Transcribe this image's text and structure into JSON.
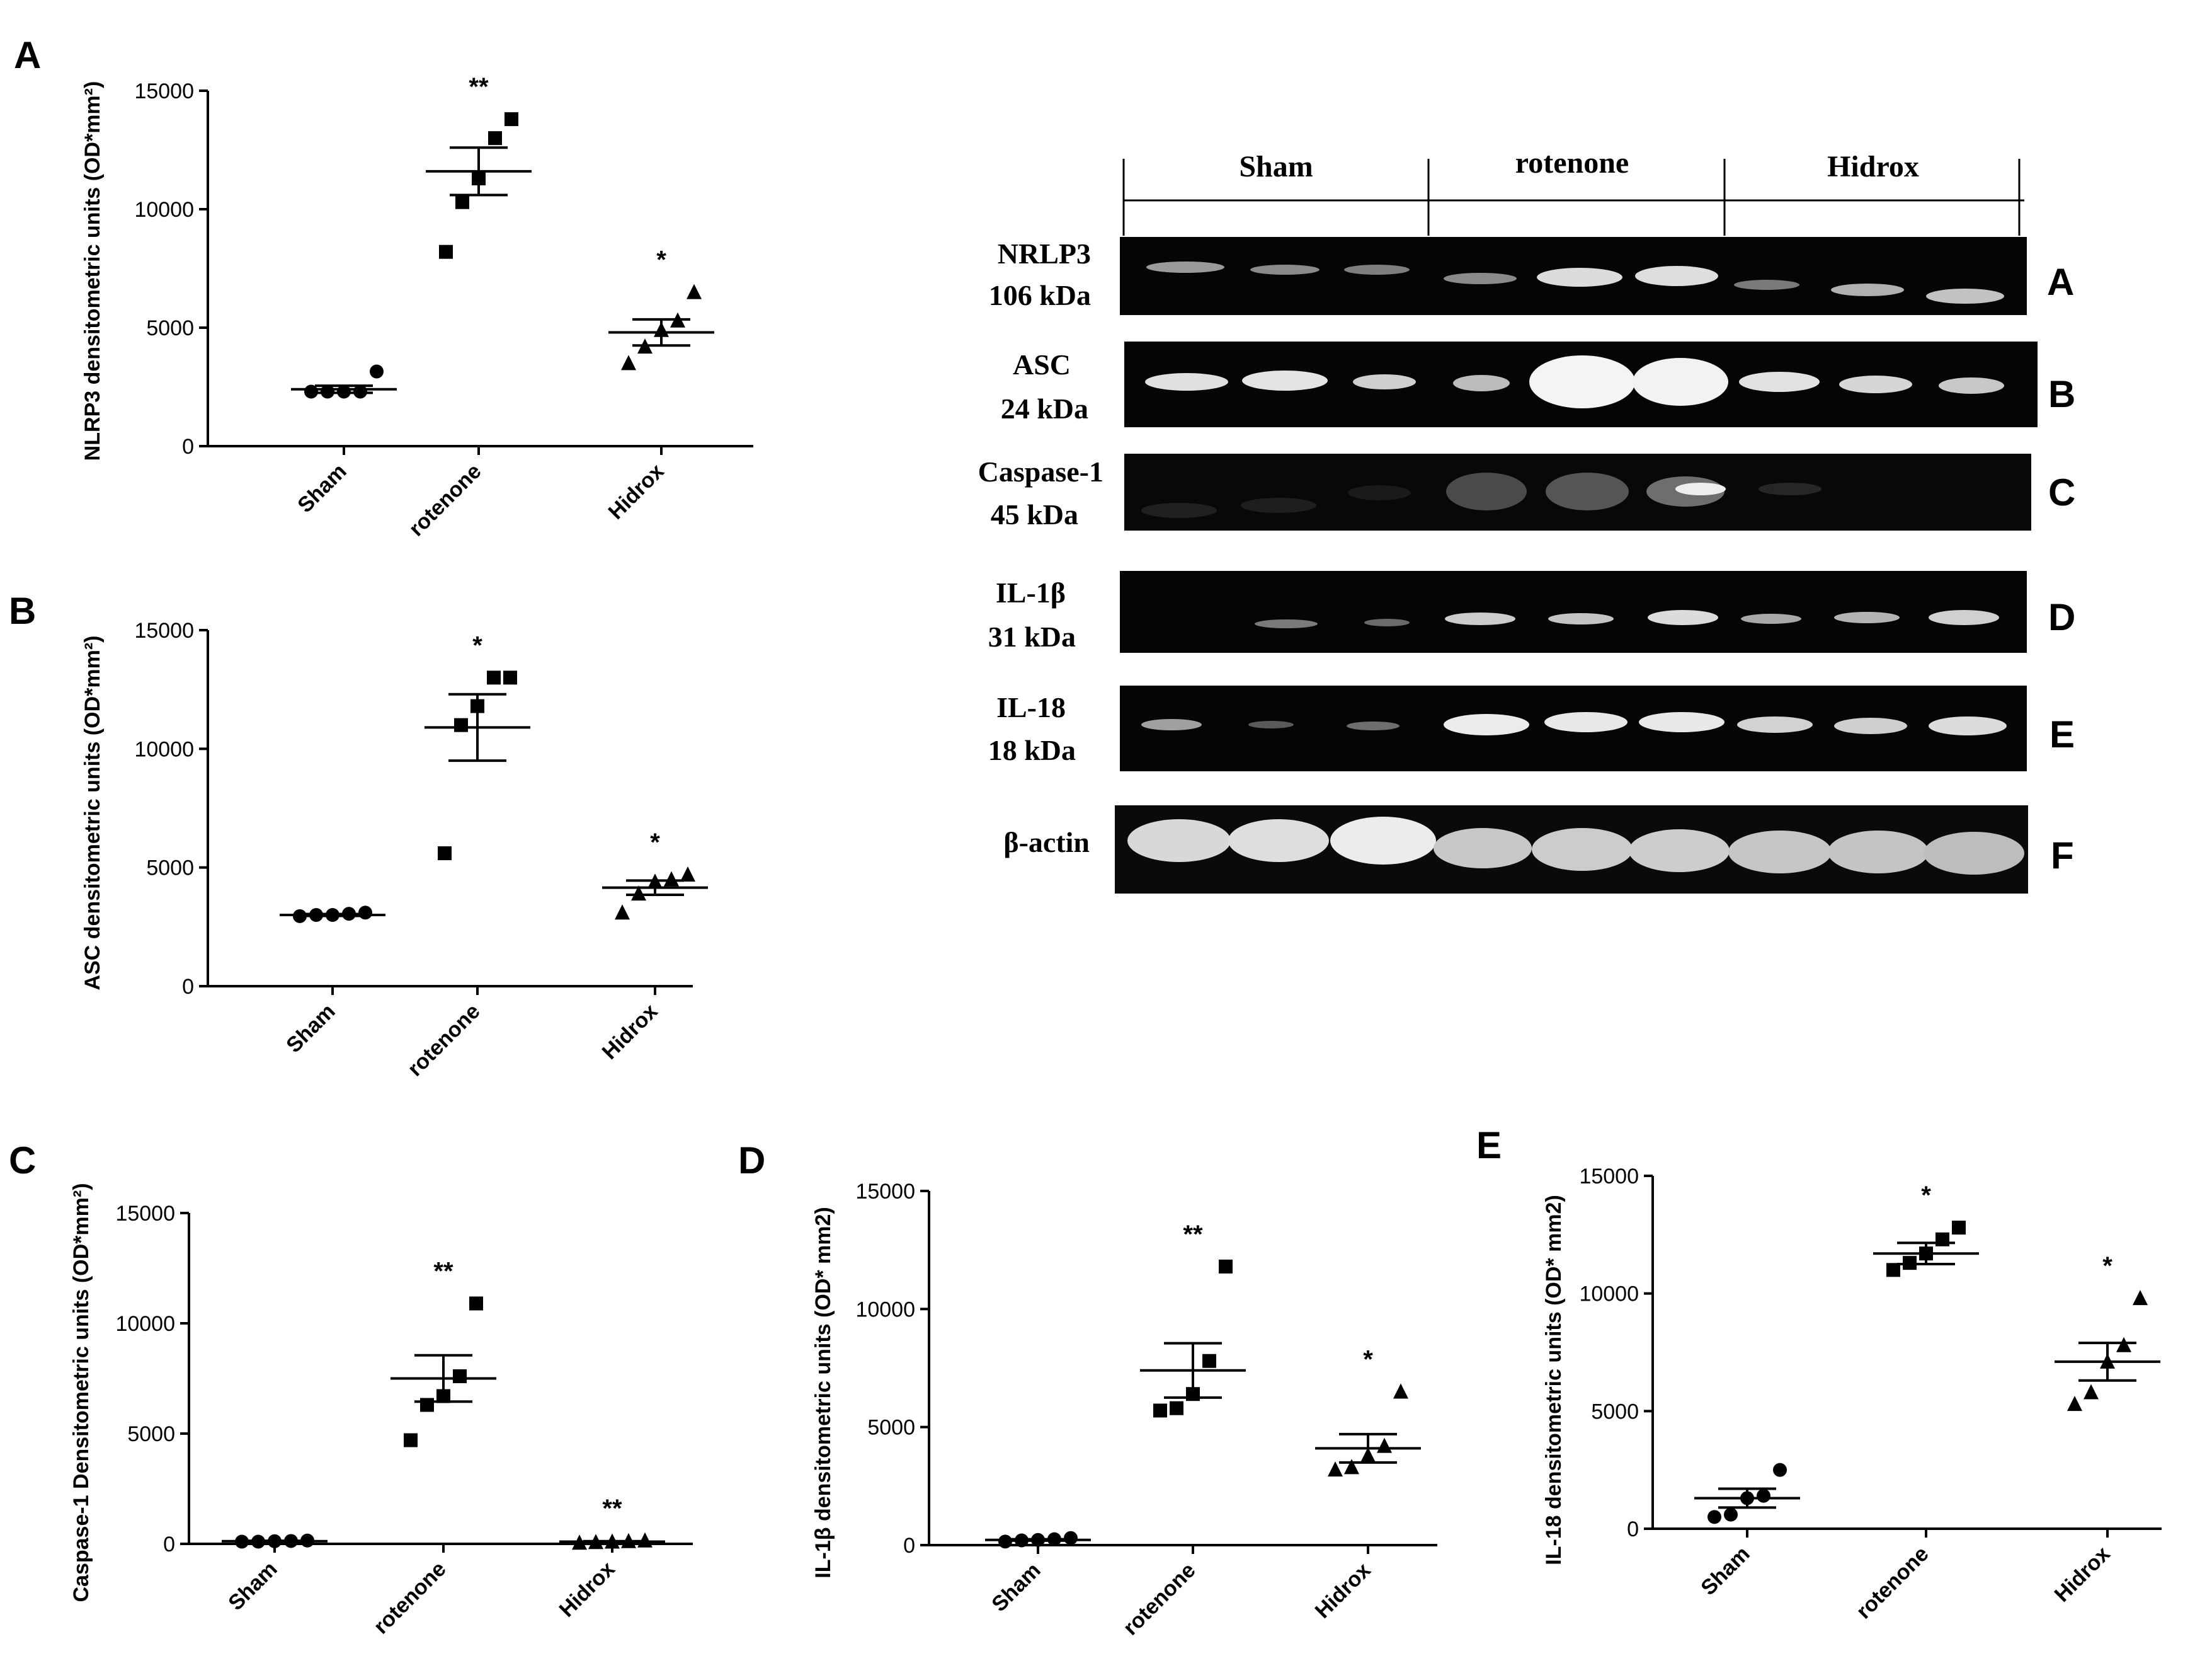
{
  "figure": {
    "charts": [
      {
        "panel": "A",
        "ylabel": "NLRP3 densitometric units (OD*mm²)"
      },
      {
        "panel": "B",
        "ylabel": "ASC densitometric units (OD*mm²)"
      },
      {
        "panel": "C",
        "ylabel": "Caspase-1 Densitometric units (OD*mm²)"
      },
      {
        "panel": "D",
        "ylabel": "IL-1β densitometric units (OD* mm2)"
      },
      {
        "panel": "E",
        "ylabel": "IL-18 densitometric units (OD* mm2)"
      }
    ],
    "blot": {
      "groups": [
        "Sham",
        "rotenone",
        "Hidrox"
      ],
      "rows": [
        {
          "label": "NRLP3",
          "size": "106 kDa",
          "panel": "A"
        },
        {
          "label": "ASC",
          "size": "24 kDa",
          "panel": "B"
        },
        {
          "label": "Caspase-1",
          "size": "45 kDa",
          "panel": "C"
        },
        {
          "label": "IL-1β",
          "size": "31 kDa",
          "panel": "D"
        },
        {
          "label": "IL-18",
          "size": "18 kDa",
          "panel": "E"
        },
        {
          "label": "β-actin",
          "size": "",
          "panel": "F"
        }
      ]
    }
  },
  "chart_data": [
    {
      "panel": "A",
      "type": "scatter",
      "title": "",
      "xlabel": "",
      "ylabel": "NLRP3 densitometric units (OD*mm²)",
      "ylim": [
        0,
        15000
      ],
      "yticks": [
        0,
        5000,
        10000,
        15000
      ],
      "categories": [
        "Sham",
        "rotenone",
        "Hidrox"
      ],
      "markers": [
        "circle",
        "square",
        "triangle"
      ],
      "points": [
        [
          2300,
          2300,
          2300,
          2300,
          3150
        ],
        [
          8200,
          10300,
          11300,
          13000,
          13800
        ],
        [
          3500,
          4200,
          4900,
          5300,
          6500
        ]
      ],
      "mean": [
        2400,
        11600,
        4800
      ],
      "sem": [
        150,
        1000,
        550
      ],
      "significance": [
        "",
        "**",
        "*"
      ]
    },
    {
      "panel": "B",
      "type": "scatter",
      "title": "",
      "xlabel": "",
      "ylabel": "ASC densitometric units (OD*mm²)",
      "ylim": [
        0,
        15000
      ],
      "yticks": [
        0,
        5000,
        10000,
        15000
      ],
      "categories": [
        "Sham",
        "rotenone",
        "Hidrox"
      ],
      "markers": [
        "circle",
        "square",
        "triangle"
      ],
      "points": [
        [
          2950,
          3000,
          3000,
          3050,
          3100
        ],
        [
          5600,
          11000,
          11800,
          13000,
          13000
        ],
        [
          3100,
          3900,
          4400,
          4500,
          4700
        ]
      ],
      "mean": [
        3000,
        10900,
        4150
      ],
      "sem": [
        40,
        1400,
        300
      ],
      "significance": [
        "",
        "*",
        "*"
      ]
    },
    {
      "panel": "C",
      "type": "scatter",
      "title": "",
      "xlabel": "",
      "ylabel": "Caspase-1 Densitometric units (OD*mm²)",
      "ylim": [
        0,
        15000
      ],
      "yticks": [
        0,
        5000,
        10000,
        15000
      ],
      "categories": [
        "Sham",
        "rotenone",
        "Hidrox"
      ],
      "markers": [
        "circle",
        "square",
        "triangle"
      ],
      "points": [
        [
          100,
          100,
          120,
          130,
          150
        ],
        [
          4700,
          6300,
          6700,
          7600,
          10900
        ],
        [
          50,
          80,
          100,
          120,
          150
        ]
      ],
      "mean": [
        120,
        7500,
        100
      ],
      "sem": [
        20,
        1050,
        20
      ],
      "significance": [
        "",
        "**",
        "**"
      ]
    },
    {
      "panel": "D",
      "type": "scatter",
      "title": "",
      "xlabel": "",
      "ylabel": "IL-1β densitometric units (OD* mm2)",
      "ylim": [
        0,
        15000
      ],
      "yticks": [
        0,
        5000,
        10000,
        15000
      ],
      "categories": [
        "Sham",
        "rotenone",
        "Hidrox"
      ],
      "markers": [
        "circle",
        "square",
        "triangle"
      ],
      "points": [
        [
          150,
          200,
          220,
          250,
          300
        ],
        [
          5700,
          5800,
          6400,
          7800,
          11800
        ],
        [
          3200,
          3300,
          3800,
          4200,
          6500
        ]
      ],
      "mean": [
        220,
        7400,
        4100
      ],
      "sem": [
        30,
        1150,
        600
      ],
      "significance": [
        "",
        "**",
        "*"
      ]
    },
    {
      "panel": "E",
      "type": "scatter",
      "title": "",
      "xlabel": "",
      "ylabel": "IL-18 densitometric units (OD* mm2)",
      "ylim": [
        0,
        15000
      ],
      "yticks": [
        0,
        5000,
        10000,
        15000
      ],
      "categories": [
        "Sham",
        "rotenone",
        "Hidrox"
      ],
      "markers": [
        "circle",
        "square",
        "triangle"
      ],
      "points": [
        [
          500,
          600,
          1300,
          1400,
          2500
        ],
        [
          11000,
          11300,
          11700,
          12300,
          12800
        ],
        [
          5300,
          5800,
          7100,
          7800,
          9800
        ]
      ],
      "mean": [
        1300,
        11700,
        7100
      ],
      "sem": [
        400,
        450,
        800
      ],
      "significance": [
        "",
        "*",
        "*"
      ]
    }
  ]
}
